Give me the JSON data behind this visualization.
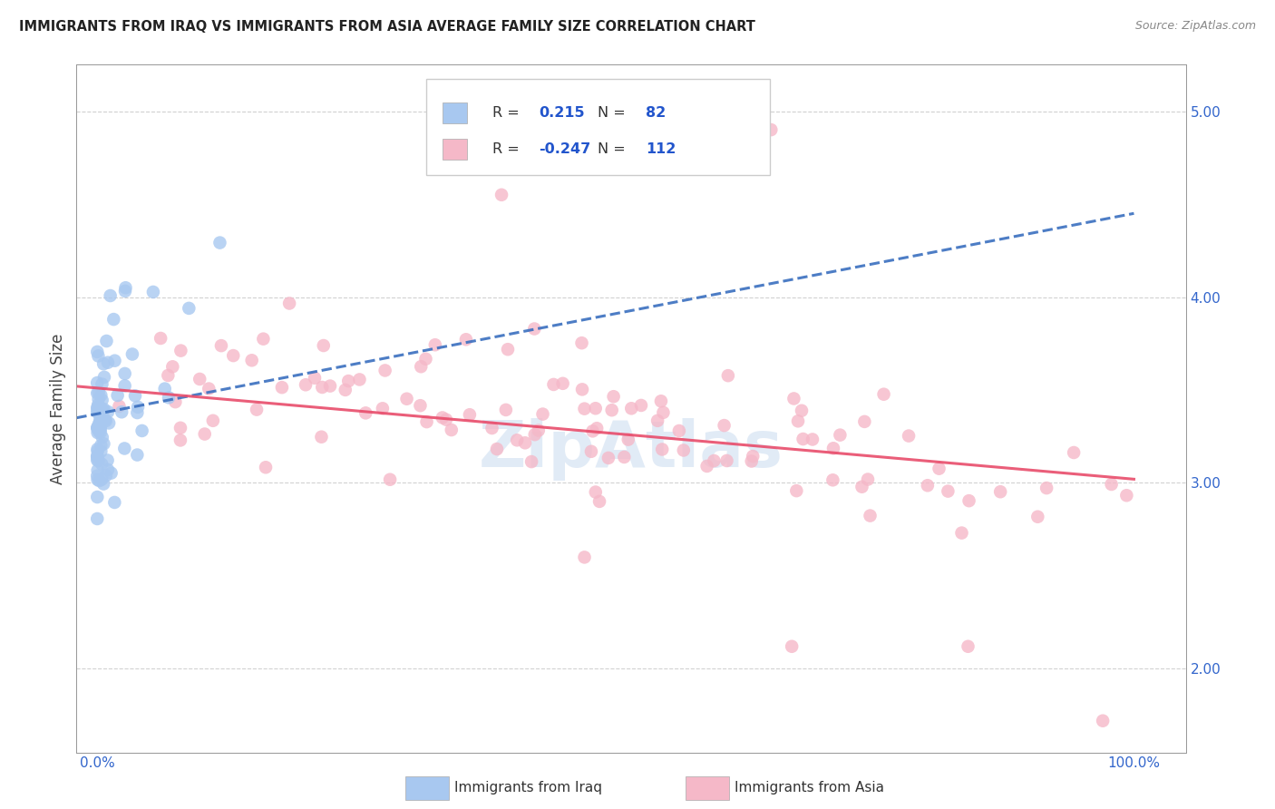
{
  "title": "IMMIGRANTS FROM IRAQ VS IMMIGRANTS FROM ASIA AVERAGE FAMILY SIZE CORRELATION CHART",
  "source": "Source: ZipAtlas.com",
  "ylabel": "Average Family Size",
  "watermark": "ZipAtlas",
  "background_color": "#ffffff",
  "grid_color": "#cccccc",
  "r_iraq": 0.215,
  "n_iraq": 82,
  "r_asia": -0.247,
  "n_asia": 112,
  "y_min": 1.55,
  "y_max": 5.25,
  "x_min": -0.02,
  "x_max": 1.05,
  "iraq_color": "#a8c8f0",
  "asia_color": "#f5b8c8",
  "iraq_line_color": "#3a6fbf",
  "asia_line_color": "#e84c6b",
  "iraq_line_style": "--",
  "asia_line_style": "-",
  "legend_text_color": "#2255cc",
  "iraq_line_y0": 3.35,
  "iraq_line_y1": 4.45,
  "asia_line_y0": 3.52,
  "asia_line_y1": 3.02
}
